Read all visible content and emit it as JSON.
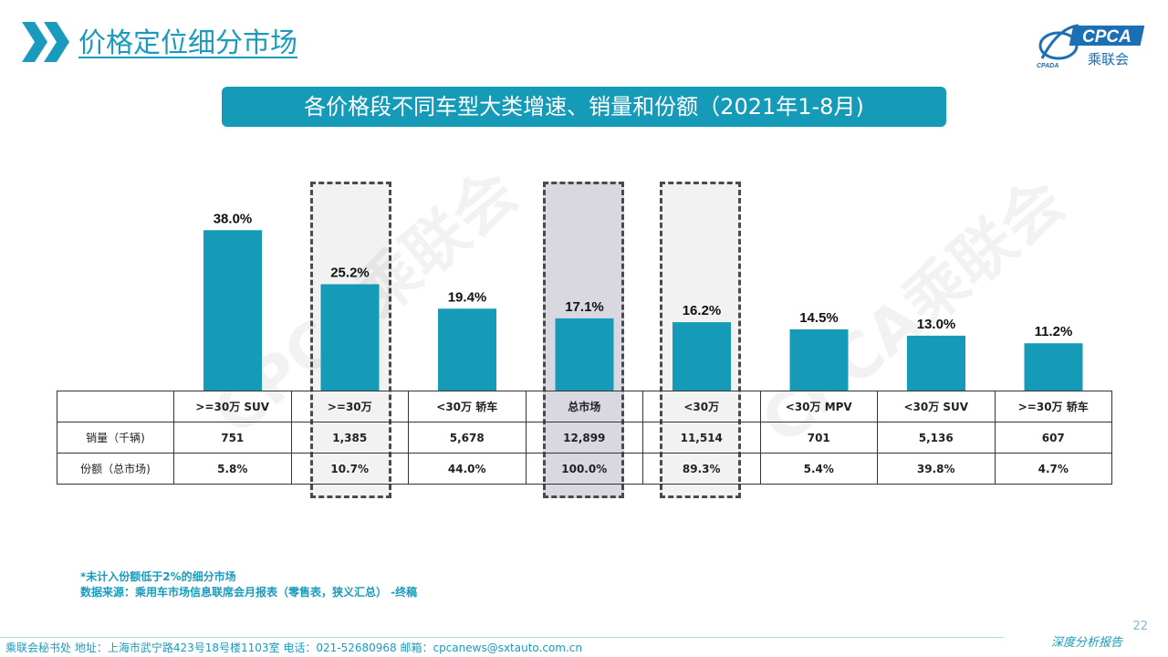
{
  "header": {
    "title": "价格定位细分市场",
    "logo_text": "CPCA",
    "logo_subtext": "乘联会",
    "logo_badge": "CPADA"
  },
  "subtitle": "各价格段不同车型大类增速、销量和份额（2021年1-8月)",
  "chart_data": {
    "type": "bar",
    "categories": [
      ">=30万 SUV",
      ">=30万",
      "<30万 轿车",
      "总市场",
      "<30万",
      "<30万 MPV",
      "<30万 SUV",
      ">=30万 轿车"
    ],
    "values": [
      38.0,
      25.2,
      19.4,
      17.1,
      16.2,
      14.5,
      13.0,
      11.2
    ],
    "value_labels": [
      "38.0%",
      "25.2%",
      "19.4%",
      "17.1%",
      "16.2%",
      "14.5%",
      "13.0%",
      "11.2%"
    ],
    "bar_color": "#159bb7",
    "ylim": [
      0,
      40
    ],
    "highlighted_categories": [
      ">=30万",
      "总市场",
      "<30万"
    ]
  },
  "table": {
    "header": [
      "",
      ">=30万 SUV",
      ">=30万",
      "<30万 轿车",
      "总市场",
      "<30万",
      "<30万 MPV",
      "<30万 SUV",
      ">=30万 轿车"
    ],
    "rows": [
      [
        "销量（千辆)",
        "751",
        "1,385",
        "5,678",
        "12,899",
        "11,514",
        "701",
        "5,136",
        "607"
      ],
      [
        "份额（总市场)",
        "5.8%",
        "10.7%",
        "44.0%",
        "100.0%",
        "89.3%",
        "5.4%",
        "39.8%",
        "4.7%"
      ]
    ]
  },
  "notes": {
    "line1": "*未计入份额低于2%的细分市场",
    "line2": "数据来源：乘用车市场信息联席会月报表（零售表，狭义汇总） -终稿"
  },
  "watermark": "CPCA乘联会",
  "footer": {
    "text": "乘联会秘书处   地址：上海市武宁路423号18号楼1103室    电话：021-52680968    邮箱：cpcanews@sxtauto.com.cn",
    "brand": "深度分析报告",
    "page_number": "22"
  },
  "colors": {
    "accent": "#1a9bbd",
    "bar": "#159bb7",
    "title_box": "#159bb7"
  }
}
